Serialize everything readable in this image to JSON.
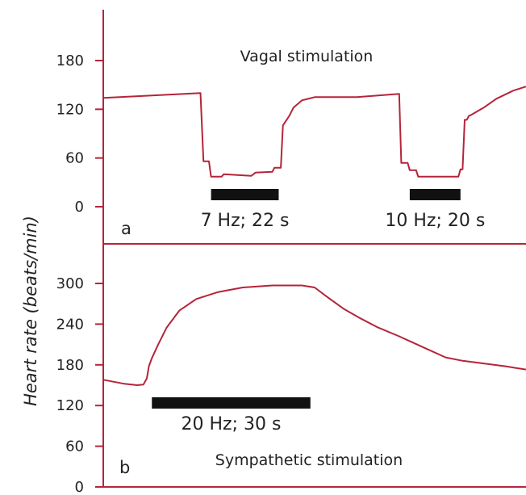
{
  "colors": {
    "axis": "#b5243a",
    "trace": "#b5243a",
    "bar": "#111111",
    "text": "#222222"
  },
  "ylabel": "Heart rate (beats/min)",
  "chart_data": [
    {
      "type": "line",
      "panel": "a",
      "title": "Vagal stimulation",
      "ylim": [
        0,
        210
      ],
      "yticks": [
        0,
        60,
        120,
        180
      ],
      "xlim": [
        0,
        100
      ],
      "series": [
        {
          "points": [
            [
              0,
              134
            ],
            [
              23,
              140
            ],
            [
              23.7,
              56
            ],
            [
              25,
              56
            ],
            [
              25.5,
              37
            ],
            [
              28,
              37
            ],
            [
              28.5,
              40
            ],
            [
              35,
              38
            ],
            [
              36,
              42
            ],
            [
              40,
              43
            ],
            [
              40.5,
              48
            ],
            [
              42,
              48
            ],
            [
              42.5,
              100
            ],
            [
              43,
              104
            ],
            [
              44,
              112
            ],
            [
              45,
              122
            ],
            [
              47,
              131
            ],
            [
              50,
              135
            ],
            [
              60,
              135
            ],
            [
              70,
              139
            ],
            [
              70.5,
              54
            ],
            [
              72,
              54
            ],
            [
              72.5,
              45
            ],
            [
              74,
              45
            ],
            [
              74.5,
              37
            ],
            [
              84,
              37
            ],
            [
              84.5,
              46
            ],
            [
              85,
              46
            ],
            [
              85.5,
              107
            ],
            [
              86,
              107
            ],
            [
              86.5,
              112
            ],
            [
              87,
              113
            ],
            [
              90,
              122
            ],
            [
              93,
              133
            ],
            [
              97,
              143
            ],
            [
              100,
              148
            ]
          ]
        }
      ],
      "bars": [
        {
          "x_start": 25.5,
          "x_end": 41.5,
          "label": "7 Hz; 22 s"
        },
        {
          "x_start": 72.5,
          "x_end": 84.5,
          "label": "10 Hz; 20 s"
        }
      ]
    },
    {
      "type": "line",
      "panel": "b",
      "title": "Sympathetic stimulation",
      "ylim": [
        0,
        330
      ],
      "yticks": [
        0,
        60,
        120,
        180,
        240,
        300
      ],
      "xlim": [
        0,
        100
      ],
      "series": [
        {
          "points": [
            [
              0,
              158
            ],
            [
              5,
              152
            ],
            [
              8,
              150
            ],
            [
              9.5,
              151
            ],
            [
              10.3,
              160
            ],
            [
              10.8,
              178
            ],
            [
              11.5,
              190
            ],
            [
              13,
              210
            ],
            [
              15,
              235
            ],
            [
              18,
              260
            ],
            [
              22,
              277
            ],
            [
              27,
              287
            ],
            [
              33,
              294
            ],
            [
              40,
              297
            ],
            [
              47,
              297
            ],
            [
              50,
              294
            ],
            [
              53,
              280
            ],
            [
              57,
              262
            ],
            [
              61,
              248
            ],
            [
              65,
              235
            ],
            [
              70,
              222
            ],
            [
              76,
              205
            ],
            [
              81,
              191
            ],
            [
              85,
              186
            ],
            [
              90,
              182
            ],
            [
              95,
              178
            ],
            [
              100,
              173
            ]
          ]
        }
      ],
      "bars": [
        {
          "x_start": 11.5,
          "x_end": 49,
          "label": "20 Hz; 30 s"
        }
      ]
    }
  ]
}
